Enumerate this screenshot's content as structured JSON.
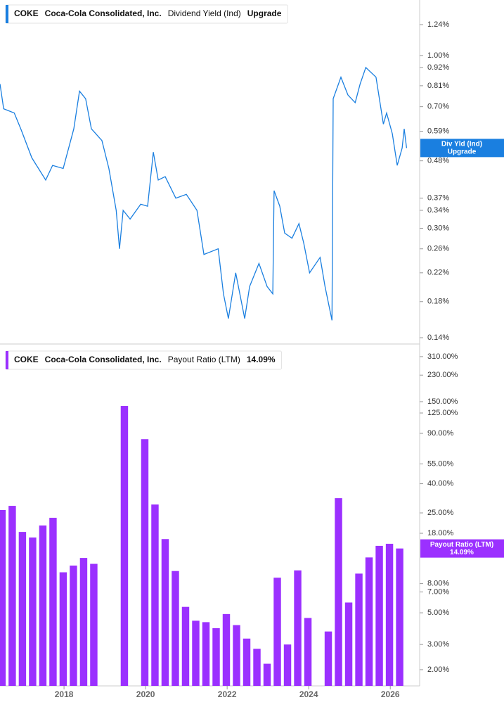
{
  "chart_data": [
    {
      "type": "line",
      "legend": {
        "ticker": "COKE",
        "company": "Coca-Cola Consolidated, Inc.",
        "value": "Upgrade"
      },
      "badge": [
        "Div Yld (Ind)",
        "Upgrade"
      ],
      "log_scale": true,
      "xlim": [
        2016.43,
        2026.72
      ],
      "ylim": [
        0.1353,
        1.472
      ],
      "yticks": [
        {
          "value": 1.24,
          "label": "1.24%"
        },
        {
          "value": 1.0,
          "label": "1.00%"
        },
        {
          "value": 0.92,
          "label": "0.92%"
        },
        {
          "value": 0.81,
          "label": "0.81%"
        },
        {
          "value": 0.7,
          "label": "0.70%"
        },
        {
          "value": 0.59,
          "label": "0.59%"
        },
        {
          "value": 0.48,
          "label": "0.48%"
        },
        {
          "value": 0.37,
          "label": "0.37%"
        },
        {
          "value": 0.34,
          "label": "0.34%"
        },
        {
          "value": 0.3,
          "label": "0.30%"
        },
        {
          "value": 0.26,
          "label": "0.26%"
        },
        {
          "value": 0.22,
          "label": "0.22%"
        },
        {
          "value": 0.18,
          "label": "0.18%"
        },
        {
          "value": 0.14,
          "label": "0.14%"
        }
      ],
      "series": [
        {
          "name": "Dividend Yield (Ind)",
          "color": "#1a7fe0",
          "x": [
            2016.43,
            2016.52,
            2016.78,
            2016.95,
            2017.21,
            2017.55,
            2017.72,
            2017.98,
            2018.24,
            2018.38,
            2018.53,
            2018.67,
            2018.93,
            2019.1,
            2019.28,
            2019.36,
            2019.45,
            2019.62,
            2019.88,
            2020.05,
            2020.19,
            2020.31,
            2020.48,
            2020.74,
            2021.0,
            2021.26,
            2021.43,
            2021.78,
            2021.91,
            2022.03,
            2022.21,
            2022.43,
            2022.55,
            2022.78,
            2022.98,
            2023.12,
            2023.15,
            2023.29,
            2023.41,
            2023.59,
            2023.76,
            2023.88,
            2024.02,
            2024.28,
            2024.4,
            2024.57,
            2024.6,
            2024.79,
            2024.96,
            2025.14,
            2025.26,
            2025.4,
            2025.65,
            2025.83,
            2025.91,
            2026.05,
            2026.17,
            2026.29,
            2026.34,
            2026.4
          ],
          "values": [
            0.82,
            0.69,
            0.67,
            0.595,
            0.49,
            0.42,
            0.465,
            0.455,
            0.6,
            0.78,
            0.74,
            0.6,
            0.553,
            0.455,
            0.34,
            0.26,
            0.34,
            0.32,
            0.355,
            0.35,
            0.51,
            0.42,
            0.43,
            0.37,
            0.38,
            0.34,
            0.25,
            0.26,
            0.19,
            0.16,
            0.22,
            0.16,
            0.2,
            0.235,
            0.2,
            0.19,
            0.39,
            0.35,
            0.29,
            0.28,
            0.31,
            0.27,
            0.22,
            0.245,
            0.2,
            0.158,
            0.74,
            0.86,
            0.76,
            0.72,
            0.82,
            0.92,
            0.86,
            0.62,
            0.67,
            0.58,
            0.465,
            0.525,
            0.6,
            0.525
          ]
        }
      ]
    },
    {
      "type": "bar",
      "legend": {
        "ticker": "COKE",
        "company": "Coca-Cola Consolidated, Inc."
      },
      "current": {
        "value": 14.09,
        "label": "14.09%"
      },
      "badge": [
        "Payout Ratio (LTM)"
      ],
      "log_scale": true,
      "xlim": [
        2016.43,
        2026.72
      ],
      "xticks": [
        2018,
        2020,
        2022,
        2024,
        2026
      ],
      "ylim": [
        1.54,
        367
      ],
      "yticks": [
        {
          "value": 310,
          "label": "310.00%"
        },
        {
          "value": 230,
          "label": "230.00%"
        },
        {
          "value": 150,
          "label": "150.00%"
        },
        {
          "value": 125,
          "label": "125.00%"
        },
        {
          "value": 90,
          "label": "90.00%"
        },
        {
          "value": 55,
          "label": "55.00%"
        },
        {
          "value": 40,
          "label": "40.00%"
        },
        {
          "value": 25,
          "label": "25.00%"
        },
        {
          "value": 18,
          "label": "18.00%"
        },
        {
          "value": 8,
          "label": "8.00%"
        },
        {
          "value": 7,
          "label": "7.00%"
        },
        {
          "value": 5,
          "label": "5.00%"
        },
        {
          "value": 3,
          "label": "3.00%"
        },
        {
          "value": 2,
          "label": "2.00%"
        }
      ],
      "series": [
        {
          "name": "Payout Ratio (LTM)",
          "color": "#9b30ff",
          "x": [
            2016.48,
            2016.73,
            2016.98,
            2017.23,
            2017.48,
            2017.73,
            2017.98,
            2018.23,
            2018.48,
            2018.73,
            2018.98,
            2019.23,
            2019.48,
            2019.73,
            2019.98,
            2020.23,
            2020.48,
            2020.73,
            2020.98,
            2021.23,
            2021.48,
            2021.73,
            2021.98,
            2022.23,
            2022.48,
            2022.73,
            2022.98,
            2023.23,
            2023.48,
            2023.73,
            2023.98,
            2024.23,
            2024.48,
            2024.73,
            2024.98,
            2025.23,
            2025.48,
            2025.73,
            2025.98,
            2026.23
          ],
          "values": [
            26.2,
            28.0,
            18.4,
            16.8,
            20.4,
            23.1,
            9.6,
            10.7,
            12.1,
            11.0,
            null,
            null,
            140,
            null,
            82,
            28.6,
            16.4,
            9.8,
            5.5,
            4.4,
            4.3,
            3.9,
            4.9,
            4.1,
            3.3,
            2.8,
            2.2,
            8.8,
            3.0,
            9.9,
            4.6,
            null,
            3.7,
            31.7,
            5.9,
            9.4,
            12.2,
            14.7,
            15.2,
            14.09
          ]
        }
      ]
    }
  ]
}
